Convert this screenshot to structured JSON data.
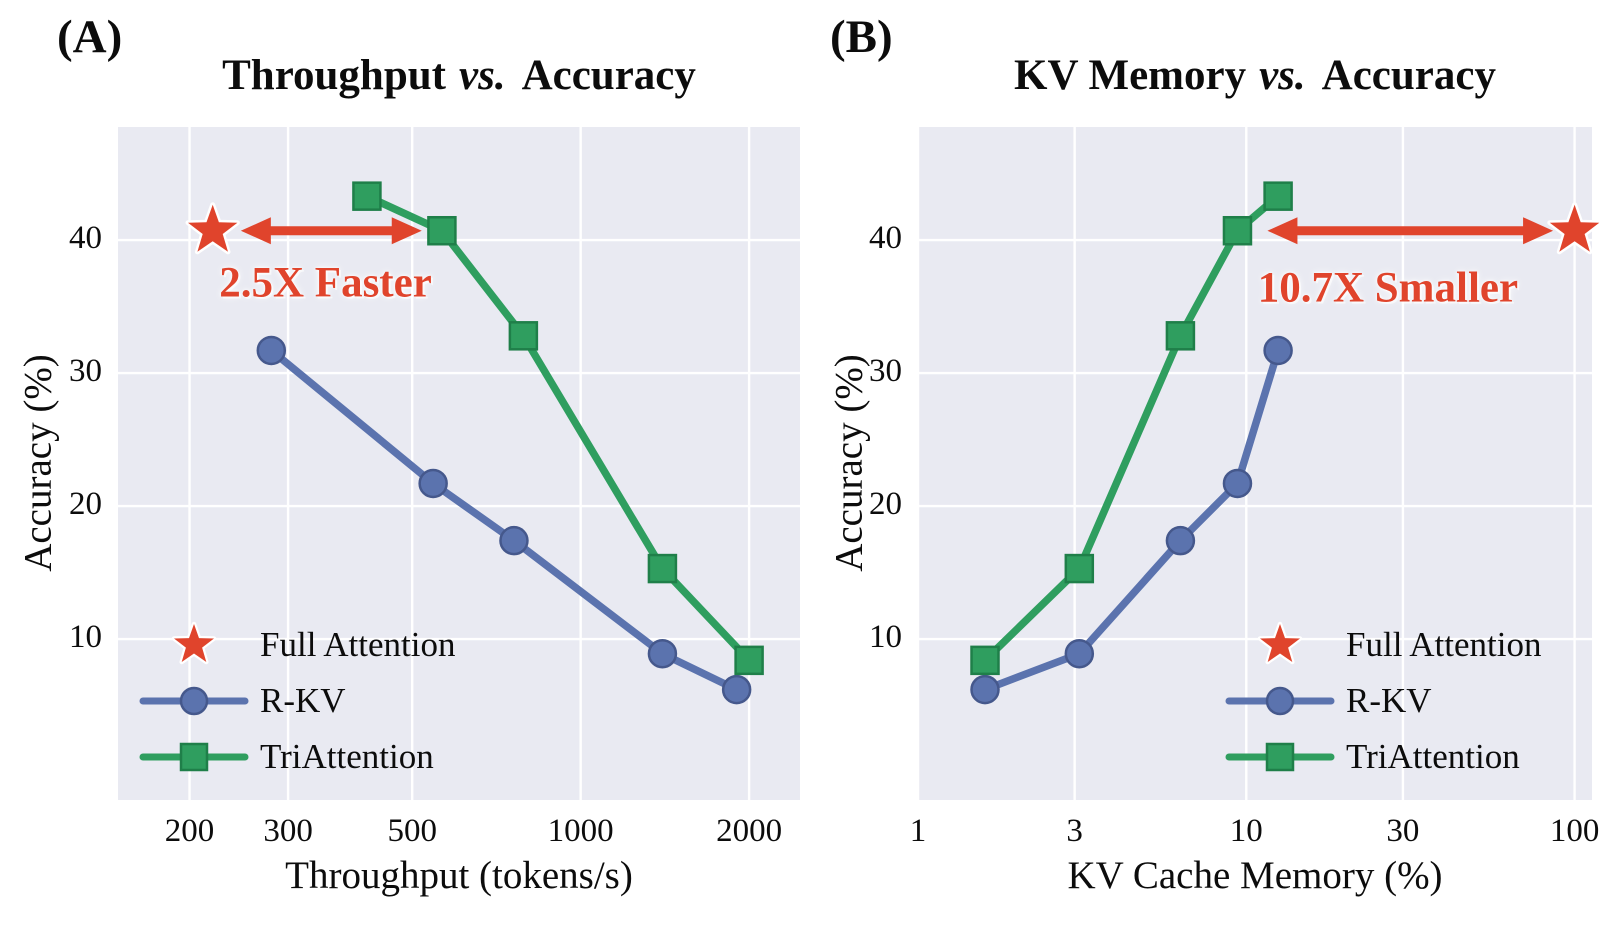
{
  "colors": {
    "background": "#ffffff",
    "plot_bg": "#e9eaf2",
    "grid": "#ffffff",
    "text": "#0c0c0c",
    "annotation_red": "#e0442c",
    "full_attention_red": "#e0442c",
    "rkv_blue": "#5b73ae",
    "rkv_blue_edge": "#45588c",
    "tri_green": "#2f9e5f",
    "tri_green_edge": "#1f7f49"
  },
  "chart_data": [
    {
      "id": "A",
      "type": "line",
      "corner_label": "(A)",
      "title_prefix": "Throughput",
      "title_vs": "vs.",
      "title_suffix": "Accuracy",
      "xlabel": "Throughput (tokens/s)",
      "ylabel": "Accuracy (%)",
      "x_scale": "log",
      "y_scale": "linear",
      "xlim": [
        149,
        2466
      ],
      "ylim": [
        -2.1,
        48.5
      ],
      "xticks": [
        200,
        300,
        500,
        1000,
        2000
      ],
      "yticks": [
        10,
        20,
        30,
        40
      ],
      "grid": true,
      "legend_position": "lower left",
      "series": [
        {
          "name": "Full Attention",
          "marker": "star",
          "color": "#e0442c",
          "edge": "#ffffff",
          "points": [
            [
              220,
              40.7
            ]
          ]
        },
        {
          "name": "R-KV",
          "marker": "circle",
          "color": "#5b73ae",
          "edge": "#45588c",
          "points": [
            [
              280,
              31.7
            ],
            [
              545,
              21.7
            ],
            [
              760,
              17.4
            ],
            [
              1400,
              8.9
            ],
            [
              1900,
              6.2
            ]
          ]
        },
        {
          "name": "TriAttention",
          "marker": "square",
          "color": "#2f9e5f",
          "edge": "#1f7f49",
          "points": [
            [
              415,
              43.3
            ],
            [
              565,
              40.7
            ],
            [
              790,
              32.8
            ],
            [
              1400,
              15.3
            ],
            [
              2000,
              8.4
            ]
          ]
        }
      ],
      "annotation": {
        "label": "2.5X Faster",
        "arrow": {
          "x1": 247,
          "x2": 520,
          "y": 40.7
        },
        "label_anchor": {
          "x": 350,
          "y": 36.8
        }
      }
    },
    {
      "id": "B",
      "type": "line",
      "corner_label": "(B)",
      "title_prefix": "KV Memory",
      "title_vs": "vs.",
      "title_suffix": "Accuracy",
      "xlabel": "KV Cache Memory (%)",
      "ylabel": "Accuracy (%)",
      "x_scale": "log",
      "y_scale": "linear",
      "xlim": [
        1,
        113
      ],
      "ylim": [
        -2.1,
        48.5
      ],
      "xticks": [
        1,
        3,
        10,
        30,
        100
      ],
      "yticks": [
        10,
        20,
        30,
        40
      ],
      "grid": true,
      "legend_position": "lower right",
      "series": [
        {
          "name": "Full Attention",
          "marker": "star",
          "color": "#e0442c",
          "edge": "#ffffff",
          "points": [
            [
              100,
              40.7
            ]
          ]
        },
        {
          "name": "R-KV",
          "marker": "circle",
          "color": "#5b73ae",
          "edge": "#45588c",
          "points": [
            [
              1.6,
              6.2
            ],
            [
              3.1,
              8.9
            ],
            [
              6.3,
              17.4
            ],
            [
              9.4,
              21.7
            ],
            [
              12.5,
              31.7
            ]
          ]
        },
        {
          "name": "TriAttention",
          "marker": "square",
          "color": "#2f9e5f",
          "edge": "#1f7f49",
          "points": [
            [
              1.6,
              8.4
            ],
            [
              3.1,
              15.3
            ],
            [
              6.3,
              32.8
            ],
            [
              9.4,
              40.7
            ],
            [
              12.5,
              43.3
            ]
          ]
        }
      ],
      "annotation": {
        "label": "10.7X Smaller",
        "arrow": {
          "x1": 11.6,
          "x2": 86,
          "y": 40.7
        },
        "label_anchor": {
          "x": 27,
          "y": 36.4
        }
      }
    }
  ]
}
